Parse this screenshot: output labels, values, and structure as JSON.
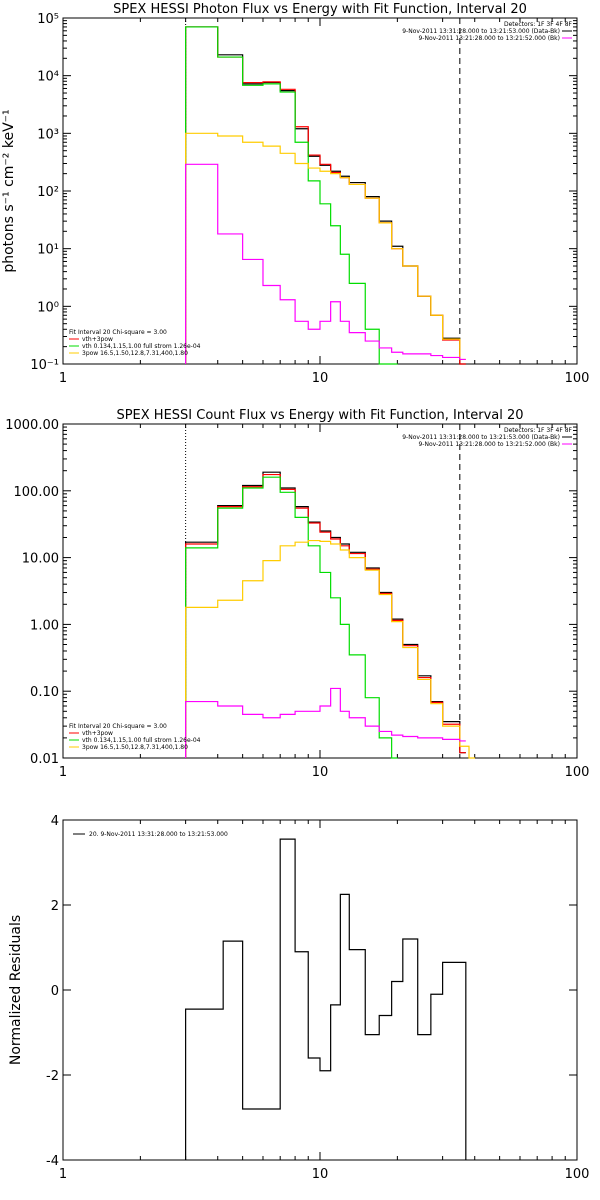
{
  "chart_data": [
    {
      "type": "line",
      "title": "SPEX HESSI Photon Flux vs Energy with Fit Function, Interval 20",
      "xlabel": "",
      "ylabel": "photons s⁻¹ cm⁻² keV⁻¹",
      "xscale": "log",
      "yscale": "log",
      "xlim": [
        1,
        100
      ],
      "ylim": [
        0.1,
        100000
      ],
      "xtick_labels": [
        "1",
        "10",
        "100"
      ],
      "ytick_labels": [
        "10⁻¹",
        "10⁰",
        "10¹",
        "10²",
        "10³",
        "10⁴",
        "10⁵"
      ],
      "legend_text": {
        "detectors": "Detectors: 1F 3F 4F 8F",
        "line1": "9-Nov-2011 13:31:28.000 to 13:21:53.000 (Data-Bk)",
        "line2": "9-Nov-2011 13:21:28.000 to 13:21:52.000 (Bk)",
        "fit_header": "Fit Interval 20   Chi-square = 3.00",
        "fit1": "vth+3pow",
        "fit2": "vth 0.134,1.15,1.00  full strom 1.26e-04",
        "fit3": "3pow 16.5,1.50,12.8,7.31,400,1.80"
      },
      "vline_dotted_x": 3,
      "vline_dashed_x": 35,
      "series": [
        {
          "color": "#000000",
          "x": [
            3,
            4,
            5,
            6,
            7,
            8,
            9,
            10,
            11,
            12,
            13,
            15,
            17,
            19,
            21,
            24,
            27,
            30,
            35
          ],
          "values": [
            70000,
            23000,
            7200,
            7600,
            5500,
            1200,
            400,
            280,
            220,
            180,
            140,
            80,
            30,
            11,
            5,
            1.5,
            0.7,
            0.28,
            0.1
          ]
        },
        {
          "color": "#ff0000",
          "x": [
            3,
            4,
            5,
            6,
            7,
            8,
            9,
            10,
            11,
            12,
            13,
            15,
            17,
            19,
            21,
            24,
            27,
            30,
            35
          ],
          "values": [
            70000,
            21000,
            7600,
            7800,
            5800,
            1300,
            420,
            290,
            210,
            170,
            130,
            75,
            28,
            10,
            5,
            1.5,
            0.7,
            0.26,
            0.1
          ]
        },
        {
          "color": "#00dd00",
          "x": [
            3,
            4,
            5,
            6,
            7,
            8,
            9,
            10,
            11,
            12,
            13,
            15,
            17,
            19
          ],
          "values": [
            70000,
            21000,
            6800,
            7200,
            5200,
            700,
            150,
            60,
            25,
            8,
            2.5,
            0.4,
            0.1,
            0.1
          ]
        },
        {
          "color": "#ffcc00",
          "x": [
            3,
            4,
            5,
            6,
            7,
            8,
            9,
            10,
            11,
            12,
            13,
            15,
            17,
            19,
            21,
            24,
            27,
            30,
            35
          ],
          "values": [
            1000,
            900,
            700,
            600,
            450,
            300,
            250,
            220,
            200,
            170,
            130,
            75,
            28,
            10,
            5,
            1.5,
            0.7,
            0.27,
            0.12
          ]
        },
        {
          "color": "#ff00ff",
          "x": [
            3,
            4,
            5,
            6,
            7,
            8,
            9,
            10,
            11,
            12,
            13,
            15,
            17,
            19,
            21,
            24,
            27,
            30,
            35
          ],
          "values": [
            290,
            18,
            6.5,
            2.3,
            1.3,
            0.55,
            0.4,
            0.55,
            1.2,
            0.55,
            0.35,
            0.25,
            0.19,
            0.16,
            0.15,
            0.15,
            0.14,
            0.13,
            0.12
          ]
        }
      ]
    },
    {
      "type": "line",
      "title": "SPEX HESSI Count Flux vs Energy with Fit Function, Interval 20",
      "xlabel": "",
      "ylabel": "",
      "xscale": "log",
      "yscale": "log",
      "xlim": [
        1,
        100
      ],
      "ylim": [
        0.01,
        1000
      ],
      "xtick_labels": [
        "1",
        "10",
        "100"
      ],
      "ytick_labels": [
        "0.01",
        "0.10",
        "1.00",
        "10.00",
        "100.00",
        "1000.00"
      ],
      "legend_text": {
        "detectors": "Detectors: 1F 3F 4F 8F",
        "line1": "9-Nov-2011 13:31:28.000 to 13:21:53.000 (Data-Bk)",
        "line2": "9-Nov-2011 13:21:28.000 to 13:21:52.000 (Bk)",
        "fit_header": "Fit Interval 20   Chi-square = 3.00",
        "fit1": "vth+3pow",
        "fit2": "vth 0.134,1.15,1.00  full strom 1.26e-04",
        "fit3": "3pow 16.5,1.50,12.8,7.31,400,1.80"
      },
      "vline_dotted_x": 3,
      "vline_dashed_x": 35,
      "series": [
        {
          "color": "#000000",
          "x": [
            3,
            4,
            5,
            6,
            7,
            8,
            9,
            10,
            11,
            12,
            13,
            15,
            17,
            19,
            21,
            24,
            27,
            30,
            35
          ],
          "values": [
            17,
            60,
            120,
            190,
            110,
            58,
            34,
            25,
            20,
            16,
            12,
            7,
            3,
            1.2,
            0.5,
            0.17,
            0.07,
            0.035,
            0.012
          ]
        },
        {
          "color": "#ff0000",
          "x": [
            3,
            4,
            5,
            6,
            7,
            8,
            9,
            10,
            11,
            12,
            13,
            15,
            17,
            19,
            21,
            24,
            27,
            30,
            35
          ],
          "values": [
            16,
            58,
            115,
            175,
            105,
            55,
            33,
            24,
            19,
            15,
            11.5,
            6.7,
            2.9,
            1.15,
            0.48,
            0.16,
            0.068,
            0.032,
            0.012
          ]
        },
        {
          "color": "#00dd00",
          "x": [
            3,
            4,
            5,
            6,
            7,
            8,
            9,
            10,
            11,
            12,
            13,
            15,
            17,
            19
          ],
          "values": [
            14,
            55,
            110,
            160,
            95,
            40,
            15,
            6,
            2.5,
            1,
            0.35,
            0.08,
            0.02,
            0.01
          ]
        },
        {
          "color": "#ffcc00",
          "x": [
            3,
            4,
            5,
            6,
            7,
            8,
            9,
            10,
            11,
            12,
            13,
            15,
            17,
            19,
            21,
            24,
            27,
            30,
            35,
            38
          ],
          "values": [
            1.8,
            2.3,
            4.5,
            9,
            15,
            17,
            18,
            17.5,
            16,
            13,
            10,
            6.5,
            2.8,
            1.1,
            0.45,
            0.15,
            0.065,
            0.03,
            0.015,
            0.01
          ]
        },
        {
          "color": "#ff00ff",
          "x": [
            3,
            4,
            5,
            6,
            7,
            8,
            9,
            10,
            11,
            12,
            13,
            15,
            17,
            19,
            21,
            24,
            27,
            30,
            35
          ],
          "values": [
            0.07,
            0.06,
            0.045,
            0.04,
            0.045,
            0.05,
            0.05,
            0.06,
            0.11,
            0.05,
            0.04,
            0.03,
            0.025,
            0.022,
            0.021,
            0.02,
            0.02,
            0.019,
            0.018
          ]
        }
      ]
    },
    {
      "type": "line",
      "title": "",
      "xlabel": "",
      "ylabel": "Normalized Residuals",
      "xscale": "log",
      "yscale": "linear",
      "xlim": [
        1,
        100
      ],
      "ylim": [
        -4,
        4
      ],
      "xtick_labels": [
        "1",
        "10",
        "100"
      ],
      "ytick_labels": [
        "-4",
        "-2",
        "0",
        "2",
        "4"
      ],
      "legend_text": "20.  9-Nov-2011 13:31:28.000 to 13:21:53.000",
      "series": [
        {
          "color": "#000000",
          "x": [
            3,
            3.5,
            4.2,
            5,
            6,
            7,
            8,
            9,
            10,
            11,
            12,
            13,
            15,
            17,
            19,
            21,
            24,
            27,
            30,
            35
          ],
          "values": [
            -0.45,
            -0.45,
            1.15,
            -2.8,
            -2.8,
            3.55,
            0.9,
            -1.6,
            -1.9,
            -0.35,
            2.25,
            0.95,
            -1.05,
            -0.6,
            0.2,
            1.2,
            -1.05,
            -0.1,
            0.65,
            0.65
          ]
        }
      ]
    }
  ]
}
